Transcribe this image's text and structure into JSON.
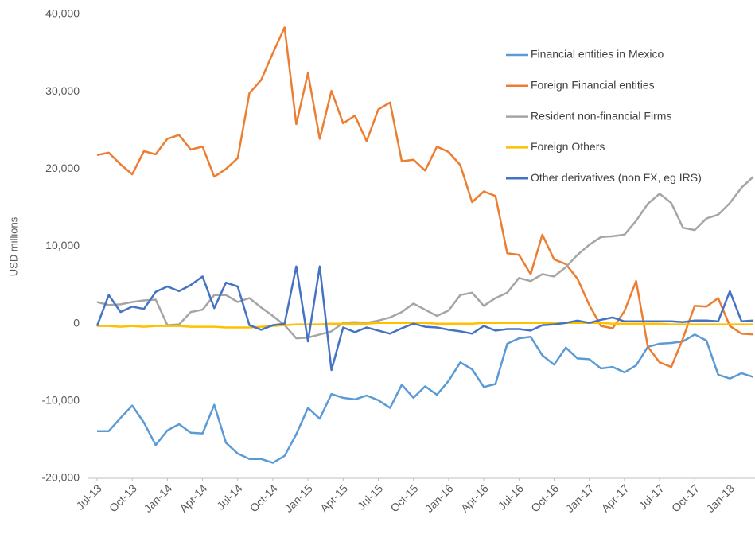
{
  "chart_data": {
    "type": "line",
    "y_label": "USD millions",
    "categories": [
      "Jul-13",
      null,
      null,
      "Oct-13",
      null,
      null,
      "Jan-14",
      null,
      null,
      "Apr-14",
      null,
      null,
      "Jul-14",
      null,
      null,
      "Oct-14",
      null,
      null,
      "Jan-15",
      null,
      null,
      "Apr-15",
      null,
      null,
      "Jul-15",
      null,
      null,
      "Oct-15",
      null,
      null,
      "Jan-16",
      null,
      null,
      "Apr-16",
      null,
      null,
      "Jul-16",
      null,
      null,
      "Oct-16",
      null,
      null,
      "Jan-17",
      null,
      null,
      "Apr-17",
      null,
      null,
      "Jul-17",
      null,
      null,
      "Oct-17",
      null,
      null,
      "Jan-18",
      null,
      null
    ],
    "series": [
      {
        "name": "Financial entities in Mexico",
        "color": "#5b9bd5",
        "values": [
          -13900,
          -13900,
          -12200,
          -10600,
          -12800,
          -15700,
          -13800,
          -13000,
          -14100,
          -14200,
          -10500,
          -15400,
          -16800,
          -17500,
          -17500,
          -18000,
          -17100,
          -14300,
          -10900,
          -12300,
          -9100,
          -9600,
          -9800,
          -9300,
          -9900,
          -10900,
          -7900,
          -9600,
          -8100,
          -9200,
          -7400,
          -5000,
          -5900,
          -8200,
          -7800,
          -2600,
          -1900,
          -1700,
          -4100,
          -5300,
          -3100,
          -4500,
          -4600,
          -5800,
          -5600,
          -6300,
          -5400,
          -3000,
          -2600,
          -2500,
          -2300,
          -1400,
          -2200,
          -6600,
          -7100,
          -6400,
          -6900
        ]
      },
      {
        "name": "Foreign Financial entities",
        "color": "#ed7d31",
        "values": [
          21800,
          22100,
          20600,
          19300,
          22300,
          21900,
          23900,
          24400,
          22500,
          22900,
          19000,
          20000,
          21400,
          29800,
          31500,
          35000,
          38300,
          25800,
          32400,
          23900,
          30100,
          25900,
          26900,
          23600,
          27700,
          28600,
          21000,
          21200,
          19800,
          22900,
          22200,
          20500,
          15700,
          17100,
          16500,
          9100,
          8900,
          6400,
          11500,
          8300,
          7700,
          5800,
          2400,
          -300,
          -600,
          1600,
          5500,
          -3000,
          -5000,
          -5600,
          -1900,
          2300,
          2200,
          3300,
          -300,
          -1300,
          -1400
        ]
      },
      {
        "name": "Resident non-financial Firms",
        "color": "#a5a5a5",
        "values": [
          2800,
          2400,
          2500,
          2800,
          3000,
          3100,
          -200,
          -100,
          1500,
          1800,
          3700,
          3700,
          2800,
          3300,
          2100,
          1000,
          -200,
          -1900,
          -1800,
          -1400,
          -1000,
          100,
          200,
          100,
          400,
          800,
          1500,
          2600,
          1800,
          1000,
          1700,
          3700,
          4000,
          2300,
          3300,
          4000,
          5900,
          5500,
          6400,
          6100,
          7300,
          8900,
          10200,
          11200,
          11300,
          11500,
          13300,
          15500,
          16800,
          15600,
          12400,
          12100,
          13600,
          14100,
          15600,
          17600,
          19000
        ]
      },
      {
        "name": "Foreign Others",
        "color": "#ffc000",
        "values": [
          -300,
          -300,
          -400,
          -300,
          -400,
          -300,
          -300,
          -300,
          -400,
          -400,
          -400,
          -500,
          -500,
          -500,
          -400,
          -300,
          -200,
          -100,
          -100,
          -100,
          0,
          0,
          0,
          0,
          100,
          100,
          100,
          100,
          100,
          0,
          0,
          0,
          0,
          100,
          100,
          100,
          100,
          100,
          100,
          100,
          100,
          100,
          100,
          100,
          0,
          0,
          0,
          0,
          0,
          -100,
          -100,
          -100,
          -100,
          -100,
          -100,
          -100,
          -100
        ]
      },
      {
        "name": "Other derivatives (non FX, eg IRS)",
        "color": "#4472c4",
        "values": [
          -300,
          3700,
          1500,
          2200,
          1900,
          4100,
          4800,
          4200,
          5000,
          6100,
          2000,
          5300,
          4800,
          -200,
          -800,
          -200,
          0,
          7400,
          -2300,
          7400,
          -6000,
          -500,
          -1100,
          -500,
          -900,
          -1300,
          -600,
          0,
          -400,
          -500,
          -800,
          -1000,
          -1300,
          -300,
          -900,
          -700,
          -700,
          -900,
          -200,
          -100,
          100,
          400,
          100,
          500,
          800,
          300,
          300,
          300,
          300,
          300,
          200,
          400,
          400,
          300,
          4200,
          300,
          400
        ]
      }
    ],
    "ylim": [
      -20000,
      40000
    ],
    "yticks": [
      {
        "value": -20000,
        "label": "-20,000"
      },
      {
        "value": -10000,
        "label": "-10,000"
      },
      0,
      {
        "value": 10000,
        "label": "10,000"
      },
      {
        "value": 20000,
        "label": "20,000"
      },
      {
        "value": 30000,
        "label": "30,000"
      },
      {
        "value": 40000,
        "label": "40,000"
      }
    ],
    "grid": false,
    "legend": "upper right"
  }
}
